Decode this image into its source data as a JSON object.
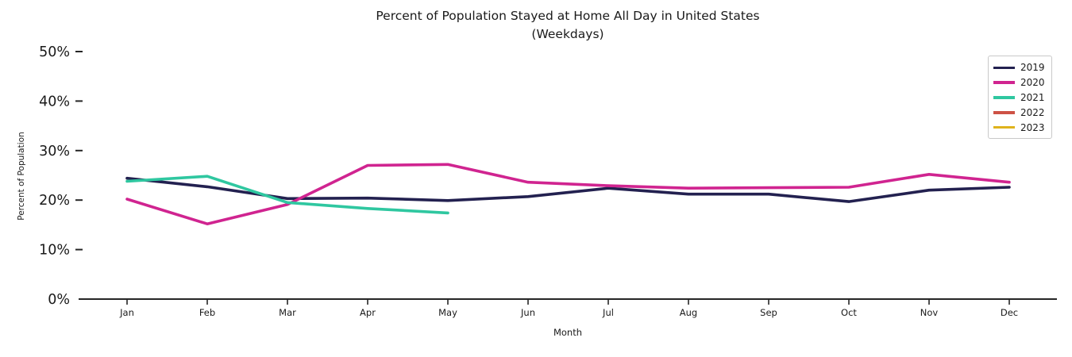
{
  "chart": {
    "title_line1": "Percent of Population Stayed at Home All Day in United States",
    "title_line2": "(Weekdays)",
    "xlabel": "Month",
    "ylabel": "Percent of Population"
  },
  "chart_data": {
    "type": "line",
    "title": "Percent of Population Stayed at Home All Day in United States (Weekdays)",
    "xlabel": "Month",
    "ylabel": "Percent of Population",
    "categories": [
      "Jan",
      "Feb",
      "Mar",
      "Apr",
      "May",
      "Jun",
      "Jul",
      "Aug",
      "Sep",
      "Oct",
      "Nov",
      "Dec"
    ],
    "ylim": [
      0,
      50
    ],
    "yticks": [
      0,
      10,
      20,
      30,
      40,
      50
    ],
    "ytick_labels": [
      "0%",
      "10%",
      "20%",
      "30%",
      "40%",
      "50%"
    ],
    "grid": false,
    "legend_position": "upper right",
    "legend_entries": [
      "2019",
      "2020",
      "2021",
      "2022",
      "2023"
    ],
    "axis_color": "#262626",
    "series": [
      {
        "name": "2019",
        "color": "#232150",
        "values": [
          24.4,
          22.7,
          20.3,
          20.4,
          19.9,
          20.7,
          22.4,
          21.2,
          21.2,
          19.7,
          22.0,
          22.6
        ]
      },
      {
        "name": "2020",
        "color": "#D02490",
        "values": [
          20.2,
          15.2,
          19.1,
          27.0,
          27.2,
          23.6,
          22.9,
          22.4,
          22.5,
          22.6,
          25.2,
          23.6
        ]
      },
      {
        "name": "2021",
        "color": "#2FC7A0",
        "values": [
          23.8,
          24.8,
          19.5,
          18.3,
          17.4,
          null,
          null,
          null,
          null,
          null,
          null,
          null
        ]
      },
      {
        "name": "2022",
        "color": "#CD5246",
        "values": []
      },
      {
        "name": "2023",
        "color": "#DFB31C",
        "values": []
      }
    ]
  }
}
